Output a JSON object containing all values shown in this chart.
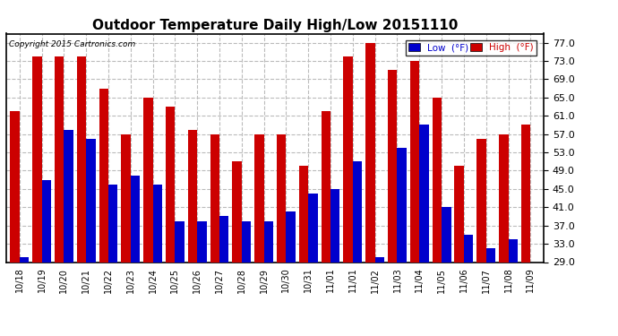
{
  "title": "Outdoor Temperature Daily High/Low 20151110",
  "copyright": "Copyright 2015 Cartronics.com",
  "legend_low": "Low  (°F)",
  "legend_high": "High  (°F)",
  "ylim": [
    29.0,
    79.0
  ],
  "yticks": [
    29.0,
    33.0,
    37.0,
    41.0,
    45.0,
    49.0,
    53.0,
    57.0,
    61.0,
    65.0,
    69.0,
    73.0,
    77.0
  ],
  "background_color": "#ffffff",
  "grid_color": "#bbbbbb",
  "bar_color_low": "#0000cc",
  "bar_color_high": "#cc0000",
  "dates": [
    "10/18",
    "10/19",
    "10/20",
    "10/21",
    "10/22",
    "10/23",
    "10/24",
    "10/25",
    "10/26",
    "10/27",
    "10/28",
    "10/29",
    "10/30",
    "10/31",
    "11/01",
    "11/01",
    "11/02",
    "11/03",
    "11/04",
    "11/05",
    "11/06",
    "11/07",
    "11/08",
    "11/09"
  ],
  "highs": [
    62,
    74,
    74,
    74,
    67,
    57,
    65,
    63,
    58,
    57,
    51,
    57,
    57,
    50,
    62,
    74,
    77,
    71,
    73,
    65,
    50,
    56,
    57,
    59
  ],
  "lows": [
    30,
    47,
    58,
    56,
    46,
    48,
    46,
    38,
    38,
    39,
    38,
    38,
    40,
    44,
    45,
    51,
    30,
    54,
    59,
    41,
    35,
    32,
    34,
    29
  ]
}
